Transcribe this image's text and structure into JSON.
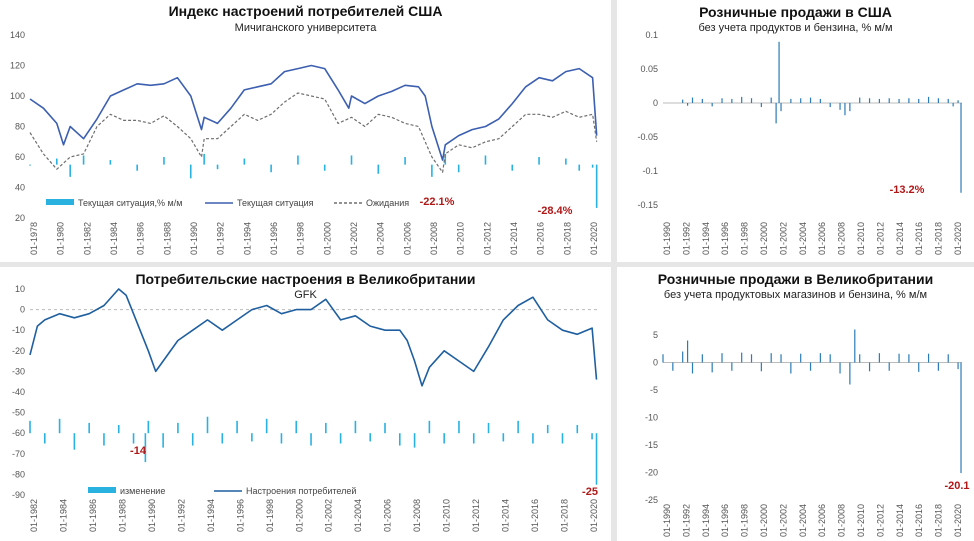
{
  "chart_data": [
    {
      "type": "line",
      "title": "Индекс настроений потребителей США",
      "subtitle": "Мичиганского университета",
      "ylim": [
        20,
        140
      ],
      "yticks": [
        20,
        40,
        60,
        80,
        100,
        120,
        140
      ],
      "xticks": [
        "01-1978",
        "01-1980",
        "01-1982",
        "01-1984",
        "01-1986",
        "01-1988",
        "01-1990",
        "01-1992",
        "01-1994",
        "01-1996",
        "01-1998",
        "01-2000",
        "01-2002",
        "01-2004",
        "01-2006",
        "01-2008",
        "01-2010",
        "01-2012",
        "01-2014",
        "01-2016",
        "01-2018",
        "01-2020"
      ],
      "x_start": 1978,
      "x_end": 2020.4,
      "series": [
        {
          "name": "Текущая ситуация,% м/м",
          "kind": "bar",
          "color": "#29b2e0",
          "baseline": 55,
          "x": [
            1978,
            1980,
            1981,
            1982,
            1984,
            1986,
            1988,
            1990,
            1991,
            1992,
            1994,
            1996,
            1998,
            2000,
            2002,
            2004,
            2006,
            2008,
            2009,
            2010,
            2012,
            2014,
            2016,
            2018,
            2019,
            2020,
            2020.3
          ],
          "values": [
            0,
            4,
            -8,
            6,
            3,
            -4,
            5,
            -9,
            7,
            -3,
            4,
            -5,
            6,
            -4,
            6,
            -6,
            5,
            -8,
            7,
            -5,
            6,
            -4,
            5,
            4,
            -4,
            -2,
            -28.4
          ]
        },
        {
          "name": "Текущая ситуация",
          "kind": "line",
          "color": "#3c5fb0",
          "x": [
            1978,
            1979,
            1980,
            1980.5,
            1981,
            1982,
            1983,
            1984,
            1985,
            1986,
            1987,
            1988,
            1989,
            1990,
            1990.8,
            1991,
            1992,
            1993,
            1994,
            1995,
            1996,
            1997,
            1998,
            1999,
            2000,
            2001,
            2001.8,
            2002,
            2003,
            2004,
            2005,
            2006,
            2007,
            2007.5,
            2008,
            2008.8,
            2009,
            2010,
            2011,
            2012,
            2013,
            2014,
            2015,
            2016,
            2017,
            2018,
            2019,
            2020,
            2020.3
          ],
          "values": [
            98,
            92,
            82,
            68,
            80,
            72,
            85,
            100,
            104,
            108,
            107,
            108,
            112,
            100,
            78,
            86,
            82,
            92,
            104,
            106,
            108,
            116,
            118,
            120,
            118,
            104,
            92,
            100,
            95,
            100,
            103,
            107,
            106,
            100,
            80,
            58,
            68,
            74,
            78,
            80,
            85,
            95,
            106,
            112,
            110,
            116,
            118,
            112,
            74
          ]
        },
        {
          "name": "Ожидания",
          "kind": "line",
          "dashed": true,
          "color": "#6e6e6e",
          "x": [
            1978,
            1979,
            1980,
            1981,
            1982,
            1983,
            1984,
            1985,
            1986,
            1987,
            1988,
            1989,
            1990,
            1990.8,
            1991,
            1992,
            1993,
            1994,
            1995,
            1996,
            1997,
            1998,
            1999,
            2000,
            2001,
            2002,
            2003,
            2004,
            2005,
            2006,
            2007,
            2008,
            2008.8,
            2009,
            2010,
            2011,
            2012,
            2013,
            2014,
            2015,
            2016,
            2017,
            2018,
            2019,
            2020,
            2020.3
          ],
          "values": [
            76,
            62,
            52,
            60,
            62,
            80,
            88,
            84,
            84,
            82,
            87,
            80,
            72,
            60,
            72,
            72,
            80,
            88,
            84,
            88,
            96,
            102,
            100,
            98,
            82,
            86,
            80,
            88,
            86,
            82,
            80,
            60,
            50,
            62,
            68,
            66,
            70,
            72,
            80,
            88,
            88,
            86,
            90,
            86,
            88,
            70
          ]
        }
      ],
      "legend": [
        "Текущая ситуация,% м/м",
        "Текущая ситуация",
        "Ожидания"
      ],
      "annotations": [
        "-22.1%",
        "-28.4%"
      ]
    },
    {
      "type": "bar",
      "title": "Розничные продажи в США",
      "subtitle": "без учета продуктов и бензина, % м/м",
      "ylim": [
        -0.15,
        0.1
      ],
      "yticks": [
        0.1,
        0.05,
        0,
        -0.05,
        -0.1,
        -0.15
      ],
      "xticks": [
        "01-1990",
        "01-1992",
        "01-1994",
        "01-1996",
        "01-1998",
        "01-2000",
        "01-2002",
        "01-2004",
        "01-2006",
        "01-2008",
        "01-2010",
        "01-2012",
        "01-2014",
        "01-2016",
        "01-2018",
        "01-2020"
      ],
      "x_start": 1990,
      "x_end": 2020.4,
      "x": [
        1992,
        1992.5,
        1993,
        1994,
        1995,
        1996,
        1997,
        1998,
        1999,
        2000,
        2001,
        2001.5,
        2001.8,
        2002,
        2003,
        2004,
        2005,
        2006,
        2007,
        2008,
        2008.5,
        2009,
        2010,
        2011,
        2012,
        2013,
        2014,
        2015,
        2016,
        2017,
        2018,
        2019,
        2019.5,
        2020,
        2020.3
      ],
      "values": [
        0.005,
        -0.004,
        0.008,
        0.006,
        -0.005,
        0.007,
        0.006,
        0.009,
        0.007,
        -0.006,
        0.008,
        -0.03,
        0.09,
        -0.012,
        0.006,
        0.007,
        0.008,
        0.006,
        -0.006,
        -0.01,
        -0.018,
        -0.012,
        0.008,
        0.007,
        0.006,
        0.007,
        0.006,
        0.007,
        0.006,
        0.009,
        0.007,
        0.006,
        -0.005,
        0.004,
        -0.132
      ],
      "annotations": [
        "-13.2%"
      ]
    },
    {
      "type": "line",
      "title": "Потребительские настроения в Великобритании",
      "subtitle": "GFK",
      "ylim": [
        -90,
        10
      ],
      "yticks": [
        10,
        0,
        -10,
        -20,
        -30,
        -40,
        -50,
        -60,
        -70,
        -80,
        -90
      ],
      "xticks": [
        "01-1982",
        "01-1984",
        "01-1986",
        "01-1988",
        "01-1990",
        "01-1992",
        "01-1994",
        "01-1996",
        "01-1998",
        "01-2000",
        "01-2002",
        "01-2004",
        "01-2006",
        "01-2008",
        "01-2010",
        "01-2012",
        "01-2014",
        "01-2016",
        "01-2018",
        "01-2020"
      ],
      "x_start": 1982,
      "x_end": 2020.4,
      "series": [
        {
          "name": "изменение",
          "kind": "bar",
          "color": "#29b2e0",
          "baseline": -60,
          "x": [
            1982,
            1983,
            1984,
            1985,
            1986,
            1987,
            1988,
            1989,
            1989.8,
            1990,
            1991,
            1992,
            1993,
            1994,
            1995,
            1996,
            1997,
            1998,
            1999,
            2000,
            2001,
            2002,
            2003,
            2004,
            2005,
            2006,
            2007,
            2008,
            2009,
            2010,
            2011,
            2012,
            2013,
            2014,
            2015,
            2016,
            2017,
            2018,
            2019,
            2020,
            2020.3
          ],
          "values": [
            6,
            -5,
            7,
            -8,
            5,
            -6,
            4,
            -5,
            -14,
            6,
            -7,
            5,
            -6,
            8,
            -5,
            6,
            -4,
            7,
            -5,
            6,
            -6,
            5,
            -5,
            6,
            -4,
            5,
            -6,
            -7,
            6,
            -5,
            6,
            -5,
            5,
            -4,
            6,
            -5,
            4,
            -5,
            4,
            -3,
            -25
          ]
        },
        {
          "name": "Настроения потребителей",
          "kind": "line",
          "color": "#1f5f9f",
          "x": [
            1982,
            1982.5,
            1983,
            1984,
            1985,
            1986,
            1987,
            1988,
            1988.5,
            1989,
            1990,
            1990.5,
            1991,
            1992,
            1993,
            1994,
            1995,
            1996,
            1997,
            1998,
            1999,
            2000,
            2001,
            2002,
            2003,
            2004,
            2005,
            2006,
            2007,
            2007.5,
            2008,
            2008.5,
            2009,
            2010,
            2011,
            2012,
            2013,
            2014,
            2015,
            2016,
            2017,
            2018,
            2019,
            2020,
            2020.3
          ],
          "values": [
            -22,
            -8,
            -5,
            -2,
            -4,
            -2,
            2,
            10,
            7,
            -2,
            -20,
            -30,
            -25,
            -15,
            -10,
            -5,
            -10,
            -5,
            0,
            2,
            -2,
            0,
            0,
            5,
            -5,
            -3,
            -8,
            -10,
            -10,
            -15,
            -25,
            -37,
            -28,
            -20,
            -25,
            -30,
            -18,
            -5,
            2,
            6,
            -5,
            -10,
            -12,
            -9,
            -34
          ]
        }
      ],
      "legend": [
        "изменение",
        "Настроения потребителей"
      ],
      "annotations": [
        "-14",
        "-25"
      ]
    },
    {
      "type": "bar",
      "title": "Розничные продажи в Великобритании",
      "subtitle": "без учета продуктовых магазинов и бензина, % м/м",
      "ylim": [
        -25,
        5
      ],
      "yticks": [
        5,
        0,
        -5,
        -10,
        -15,
        -20,
        -25
      ],
      "xticks": [
        "01-1990",
        "01-1992",
        "01-1994",
        "01-1996",
        "01-1998",
        "01-2000",
        "01-2002",
        "01-2004",
        "01-2006",
        "01-2008",
        "01-2010",
        "01-2012",
        "01-2014",
        "01-2016",
        "01-2018",
        "01-2020"
      ],
      "x_start": 1990,
      "x_end": 2020.4,
      "x": [
        1990,
        1991,
        1992,
        1992.5,
        1993,
        1994,
        1995,
        1996,
        1997,
        1998,
        1999,
        2000,
        2001,
        2002,
        2003,
        2004,
        2005,
        2006,
        2007,
        2008,
        2009,
        2009.5,
        2010,
        2011,
        2012,
        2013,
        2014,
        2015,
        2016,
        2017,
        2018,
        2019,
        2020,
        2020.3
      ],
      "values": [
        1.5,
        -1.5,
        2,
        4,
        -2,
        1.5,
        -1.8,
        1.7,
        -1.5,
        1.8,
        1.5,
        -1.6,
        1.7,
        1.5,
        -2,
        1.6,
        -1.5,
        1.7,
        1.5,
        -2,
        -4,
        6,
        1.5,
        -1.6,
        1.7,
        -1.5,
        1.6,
        1.5,
        -1.7,
        1.6,
        -1.5,
        1.5,
        -1.2,
        -20.1
      ],
      "annotations": [
        "-20.1"
      ]
    }
  ]
}
